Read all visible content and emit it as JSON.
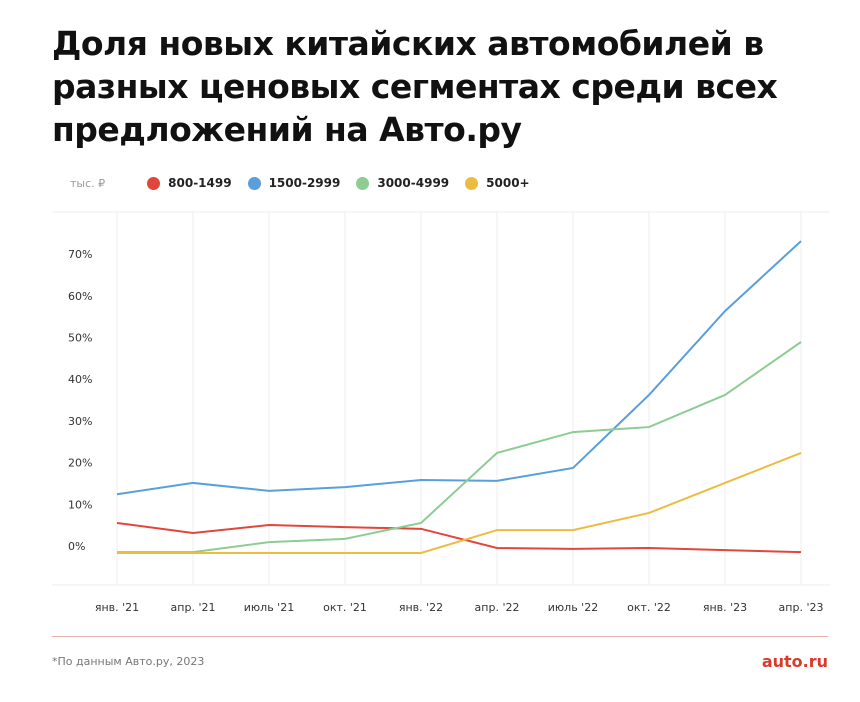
{
  "title": "Доля новых китайских автомобилей в разных ценовых сегментах среди всех предложений на Авто.ру",
  "footnote": "*По данным Авто.ру, 2023",
  "logo": "auto.ru",
  "chart_data": {
    "type": "line",
    "unit_label": "тыс. ₽",
    "categories": [
      "янв. '21",
      "апр. '21",
      "июль '21",
      "окт. '21",
      "янв. '22",
      "апр. '22",
      "июль '22",
      "окт. '22",
      "янв. '23",
      "апр. '23"
    ],
    "y_ticks": [
      "0%",
      "10%",
      "20%",
      "30%",
      "40%",
      "50%",
      "60%",
      "70%"
    ],
    "ylim": [
      -7,
      78
    ],
    "grid": "vertical",
    "legend": "top-left",
    "series": [
      {
        "name": "800-1499",
        "color": "#e0463c",
        "values": [
          7.2,
          4.8,
          6.7,
          6.2,
          5.8,
          1.2,
          1.0,
          1.2,
          0.7,
          0.2
        ]
      },
      {
        "name": "1500-2999",
        "color": "#5a9fd9",
        "values": [
          14.1,
          16.8,
          14.9,
          15.8,
          17.5,
          17.3,
          20.4,
          37.9,
          58,
          74.8
        ]
      },
      {
        "name": "3000-4999",
        "color": "#8dcc93",
        "values": [
          0.2,
          0.2,
          2.6,
          3.4,
          7.2,
          24,
          29,
          30.2,
          37.9,
          50.6
        ]
      },
      {
        "name": "5000+",
        "color": "#ebbc3f",
        "values": [
          0,
          0,
          0,
          0,
          0,
          5.5,
          5.5,
          9.6,
          16.8,
          24
        ]
      }
    ]
  }
}
